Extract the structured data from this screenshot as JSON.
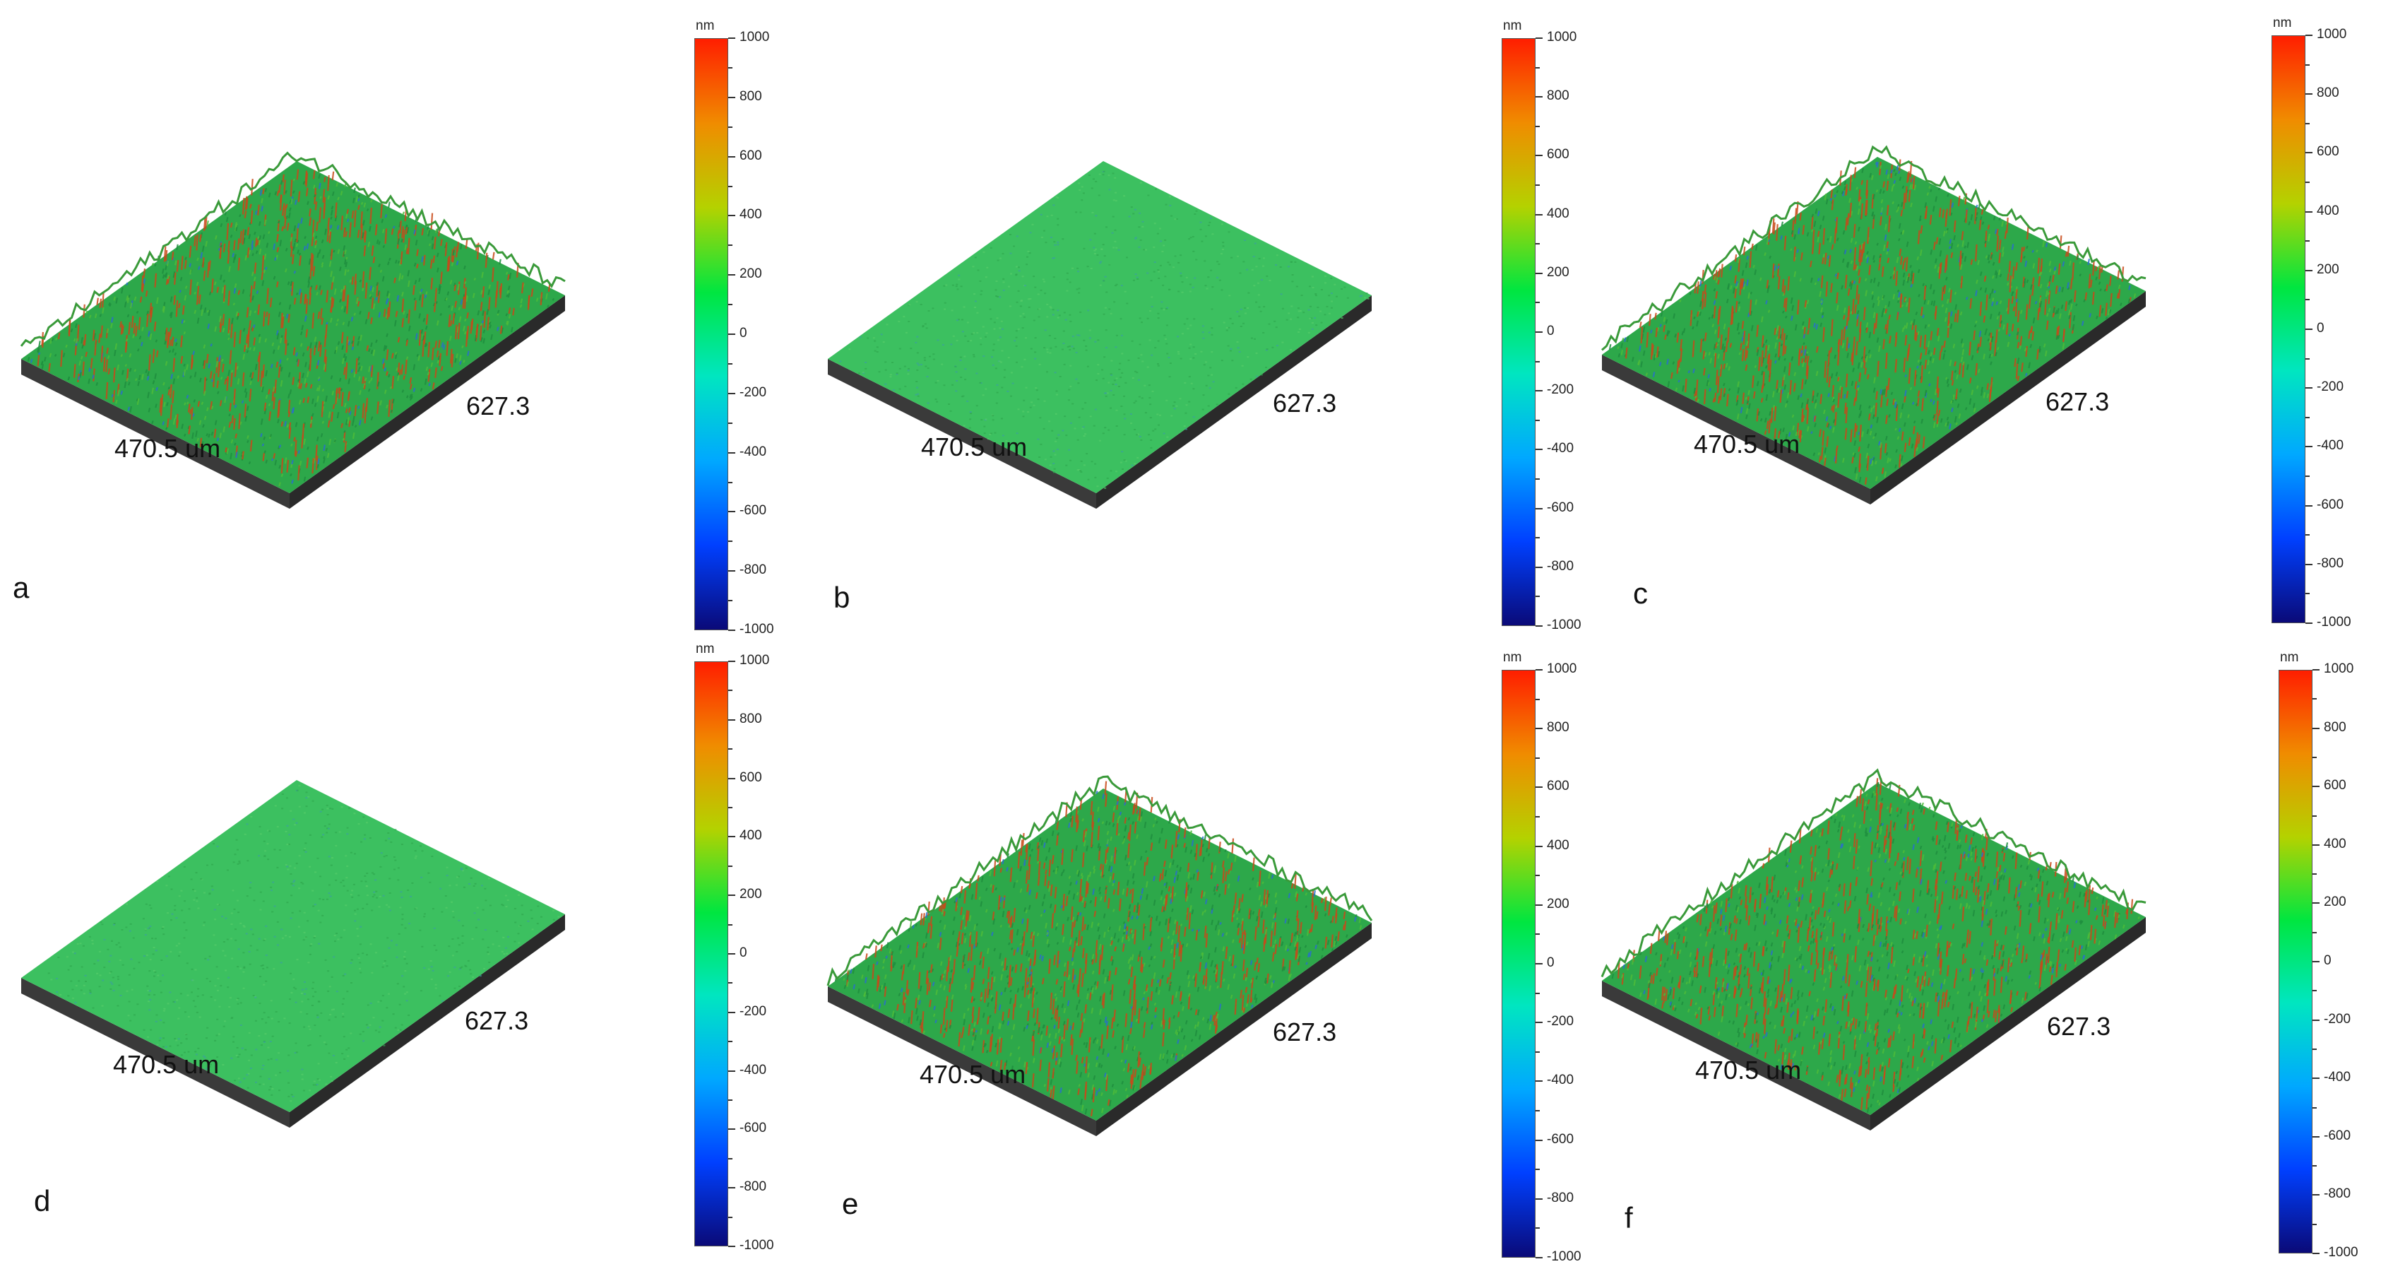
{
  "colors": {
    "colormap": [
      "#0a0a78",
      "#0040ff",
      "#00a8ff",
      "#00e6c0",
      "#00e640",
      "#b4d200",
      "#f08c00",
      "#ff1e00"
    ],
    "surface_base": "#3a3a3a",
    "surface_green": "#2da84a",
    "surface_peak_red": "#c84a1a",
    "surface_pit_blue": "#2a70c8"
  },
  "scalebar": {
    "unit": "nm",
    "ticks": [
      "1000",
      "800",
      "600",
      "400",
      "200",
      "0",
      "-200",
      "-400",
      "-600",
      "-800",
      "-1000"
    ]
  },
  "panels": [
    {
      "letter": "a",
      "width_label": "470.5 um",
      "length_label": "627.3",
      "roughness": "high"
    },
    {
      "letter": "b",
      "width_label": "470.5 um",
      "length_label": "627.3",
      "roughness": "smooth"
    },
    {
      "letter": "c",
      "width_label": "470.5 um",
      "length_label": "627.3",
      "roughness": "high"
    },
    {
      "letter": "d",
      "width_label": "470.5 um",
      "length_label": "627.3",
      "roughness": "smooth"
    },
    {
      "letter": "e",
      "width_label": "470.5 um",
      "length_label": "627.3",
      "roughness": "high"
    },
    {
      "letter": "f",
      "width_label": "470.5 um",
      "length_label": "627.3",
      "roughness": "high"
    }
  ]
}
